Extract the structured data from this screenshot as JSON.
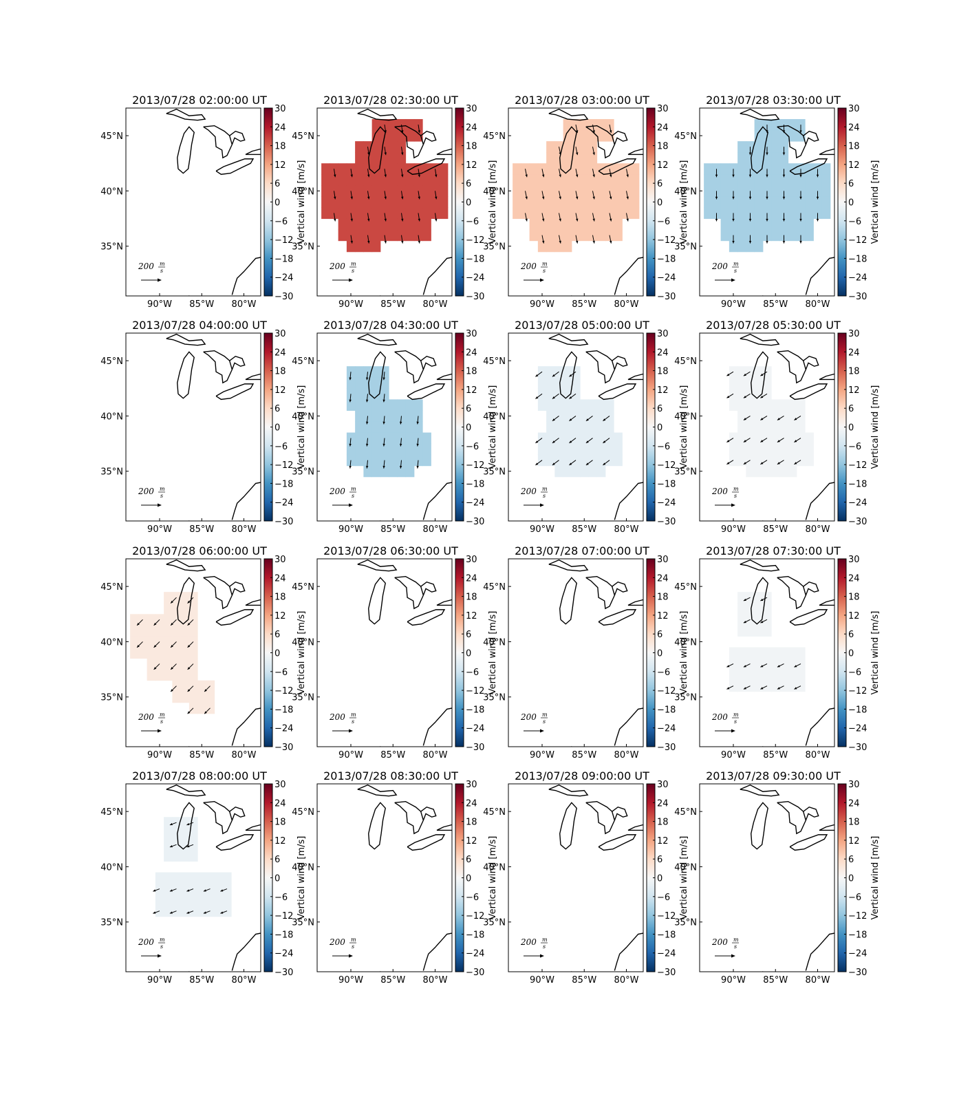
{
  "chart_data": {
    "type": "heatmap",
    "layout": "4x4 small multiples",
    "colorbar": {
      "label": "Vertical wind [m/s]",
      "ticks": [
        30,
        24,
        18,
        12,
        6,
        0,
        -6,
        -12,
        -18,
        -24,
        -30
      ],
      "range": [
        -30,
        30
      ],
      "colormap": "RdBu_r",
      "colors": [
        "#053061",
        "#2166ac",
        "#4393c3",
        "#92c5de",
        "#d1e5f0",
        "#f7f7f7",
        "#fddbc7",
        "#f4a582",
        "#d6604d",
        "#b2182b",
        "#67001f"
      ]
    },
    "x_ticks": [
      "90°W",
      "85°W",
      "80°W"
    ],
    "y_ticks": [
      "45°N",
      "40°N",
      "35°N"
    ],
    "xlim": [
      -94,
      -78
    ],
    "ylim": [
      30.5,
      47.5
    ],
    "reference_arrow": {
      "value": "200",
      "unit": "m/s",
      "label_text": "200",
      "unit_num": "m",
      "unit_den": "s"
    },
    "panels": [
      {
        "title": "2013/07/28 02:00:00 UT",
        "value": null,
        "region": "none",
        "wind": [
          0,
          0
        ]
      },
      {
        "title": "2013/07/28 02:30:00 UT",
        "value": 20,
        "region": "large",
        "wind": [
          0.15,
          -1
        ]
      },
      {
        "title": "2013/07/28 03:00:00 UT",
        "value": 8,
        "region": "large",
        "wind": [
          0.2,
          -1
        ]
      },
      {
        "title": "2013/07/28 03:30:00 UT",
        "value": -10,
        "region": "large",
        "wind": [
          0,
          -1
        ]
      },
      {
        "title": "2013/07/28 04:00:00 UT",
        "value": null,
        "region": "none",
        "wind": [
          0,
          0
        ]
      },
      {
        "title": "2013/07/28 04:30:00 UT",
        "value": -10,
        "region": "double",
        "wind": [
          -0.1,
          -1
        ]
      },
      {
        "title": "2013/07/28 05:00:00 UT",
        "value": -3,
        "region": "double",
        "wind": [
          -0.8,
          -0.6
        ]
      },
      {
        "title": "2013/07/28 05:30:00 UT",
        "value": -1,
        "region": "double",
        "wind": [
          -0.8,
          -0.5
        ]
      },
      {
        "title": "2013/07/28 06:00:00 UT",
        "value": 3,
        "region": "west",
        "wind": [
          -0.7,
          -0.7
        ]
      },
      {
        "title": "2013/07/28 06:30:00 UT",
        "value": null,
        "region": "none",
        "wind": [
          0,
          0
        ]
      },
      {
        "title": "2013/07/28 07:00:00 UT",
        "value": null,
        "region": "none",
        "wind": [
          0,
          0
        ]
      },
      {
        "title": "2013/07/28 07:30:00 UT",
        "value": -1,
        "region": "small",
        "wind": [
          -0.8,
          -0.4
        ]
      },
      {
        "title": "2013/07/28 08:00:00 UT",
        "value": -2,
        "region": "small",
        "wind": [
          -0.8,
          -0.3
        ]
      },
      {
        "title": "2013/07/28 08:30:00 UT",
        "value": null,
        "region": "none",
        "wind": [
          0,
          0
        ]
      },
      {
        "title": "2013/07/28 09:00:00 UT",
        "value": null,
        "region": "none",
        "wind": [
          0,
          0
        ]
      },
      {
        "title": "2013/07/28 09:30:00 UT",
        "value": null,
        "region": "none",
        "wind": [
          0,
          0
        ]
      }
    ]
  }
}
